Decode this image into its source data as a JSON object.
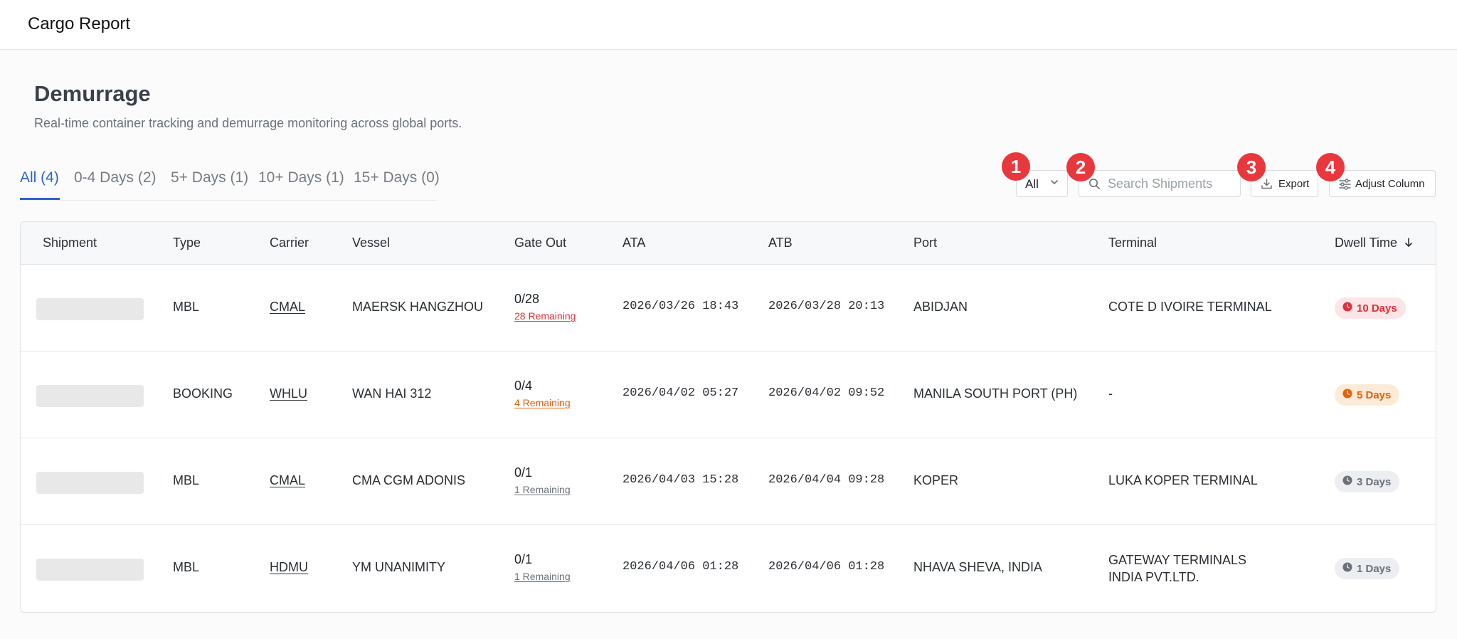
{
  "app": {
    "title": "Cargo Report"
  },
  "page": {
    "title": "Demurrage",
    "subtitle": "Real-time container tracking and demurrage monitoring across global ports."
  },
  "tabs": [
    {
      "label": "All (4)",
      "active": true
    },
    {
      "label": "0-4 Days (2)",
      "active": false
    },
    {
      "label": "5+ Days (1)",
      "active": false
    },
    {
      "label": "10+ Days (1)",
      "active": false
    },
    {
      "label": "15+ Days (0)",
      "active": false
    }
  ],
  "toolbar": {
    "filter_value": "All",
    "search_placeholder": "Search Shipments",
    "export_label": "Export",
    "adjust_label": "Adjust Column"
  },
  "markers": [
    "1",
    "2",
    "3",
    "4"
  ],
  "table": {
    "headers": {
      "shipment": "Shipment",
      "type": "Type",
      "carrier": "Carrier",
      "vessel": "Vessel",
      "gate_out": "Gate Out",
      "ata": "ATA",
      "atb": "ATB",
      "port": "Port",
      "terminal": "Terminal",
      "dwell": "Dwell Time"
    },
    "sort": {
      "column": "Dwell Time",
      "direction": "descending"
    },
    "rows": [
      {
        "type": "MBL",
        "carrier": "CMAL",
        "vessel": "MAERSK HANGZHOU",
        "gate_out": "0/28",
        "remaining": "28 Remaining",
        "ata": "2026/03/26 18:43",
        "atb": "2026/03/28 20:13",
        "port": "ABIDJAN",
        "terminal": "COTE D IVOIRE TERMINAL",
        "dwell": "10 Days",
        "severity": "red"
      },
      {
        "type": "BOOKING",
        "carrier": "WHLU",
        "vessel": "WAN HAI 312",
        "gate_out": "0/4",
        "remaining": "4 Remaining",
        "ata": "2026/04/02 05:27",
        "atb": "2026/04/02 09:52",
        "port": "MANILA SOUTH PORT (PH)",
        "terminal": "-",
        "dwell": "5 Days",
        "severity": "orange"
      },
      {
        "type": "MBL",
        "carrier": "CMAL",
        "vessel": "CMA CGM ADONIS",
        "gate_out": "0/1",
        "remaining": "1 Remaining",
        "ata": "2026/04/03 15:28",
        "atb": "2026/04/04 09:28",
        "port": "KOPER",
        "terminal": "LUKA KOPER TERMINAL",
        "dwell": "3 Days",
        "severity": "gray"
      },
      {
        "type": "MBL",
        "carrier": "HDMU",
        "vessel": "YM UNANIMITY",
        "gate_out": "0/1",
        "remaining": "1 Remaining",
        "ata": "2026/04/06 01:28",
        "atb": "2026/04/06 01:28",
        "port": "NHAVA SHEVA, INDIA",
        "terminal": "GATEWAY TERMINALS INDIA PVT.LTD.",
        "dwell": "1 Days",
        "severity": "gray"
      }
    ]
  },
  "colors": {
    "accent": "#2f62c9",
    "marker": "#e8383d",
    "severity": {
      "red": {
        "text": "#e0303b",
        "bg": "#fde4e6"
      },
      "orange": {
        "text": "#e2620c",
        "bg": "#fdebd9"
      },
      "gray": {
        "text": "#6b7078",
        "bg": "#eceef1"
      }
    }
  }
}
